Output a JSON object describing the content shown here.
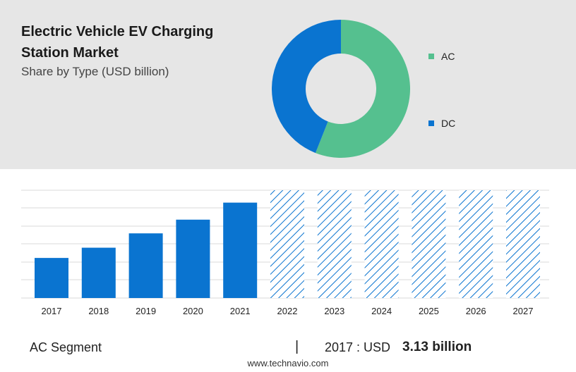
{
  "header": {
    "title": "Electric Vehicle EV Charging Station Market",
    "subtitle": "Share by Type (USD billion)"
  },
  "chart_data": [
    {
      "type": "pie",
      "style": "donut",
      "legend_position": "right",
      "categories": [
        "AC",
        "DC"
      ],
      "values": [
        56,
        44
      ],
      "colors": [
        "#55c08f",
        "#0a74d0"
      ]
    },
    {
      "type": "bar",
      "categories": [
        "2017",
        "2018",
        "2019",
        "2020",
        "2021",
        "2022",
        "2023",
        "2024",
        "2025",
        "2026",
        "2027"
      ],
      "values": [
        3.13,
        3.93,
        5.05,
        6.12,
        7.45,
        null,
        null,
        null,
        null,
        null,
        null
      ],
      "forecast_categories": [
        "2022",
        "2023",
        "2024",
        "2025",
        "2026",
        "2027"
      ],
      "colors": {
        "bar": "#0a74d0",
        "forecast_hatch": "#0a74d0"
      },
      "grid": true
    }
  ],
  "footer": {
    "segment": "AC Segment",
    "divider": "|",
    "year_label": "2017 : USD",
    "value": "3.13 billion",
    "source": "www.technavio.com"
  }
}
